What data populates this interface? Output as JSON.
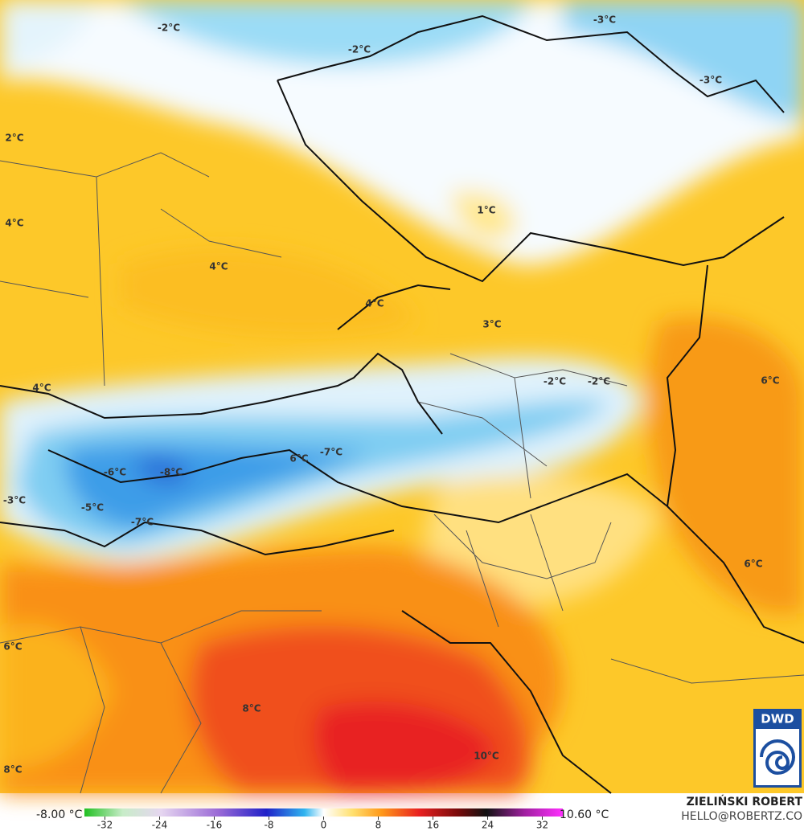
{
  "map": {
    "labels": [
      "-2°C",
      "-2°C",
      "-3°C",
      "-3°C",
      "2°C",
      "1°C",
      "4°C",
      "4°C",
      "4°C",
      "3°C",
      "-2°C",
      "-2°C",
      "4°C",
      "6°C",
      "6°C",
      "-7°C",
      "-6°C",
      "-8°C",
      "-3°C",
      "-5°C",
      "-7°C",
      "6°C",
      "6°C",
      "8°C",
      "10°C",
      "8°C"
    ]
  },
  "colorbar": {
    "min_label": "-8.00 °C",
    "max_label": "10.60 °C",
    "range": [
      -35,
      35
    ],
    "ticks": [
      -32,
      -24,
      -16,
      -8,
      0,
      8,
      16,
      24,
      32
    ]
  },
  "credit": {
    "name": "ZIELIŃSKI ROBERT",
    "email": "HELLO@ROBERTZ.CO"
  },
  "logo": "DWD"
}
